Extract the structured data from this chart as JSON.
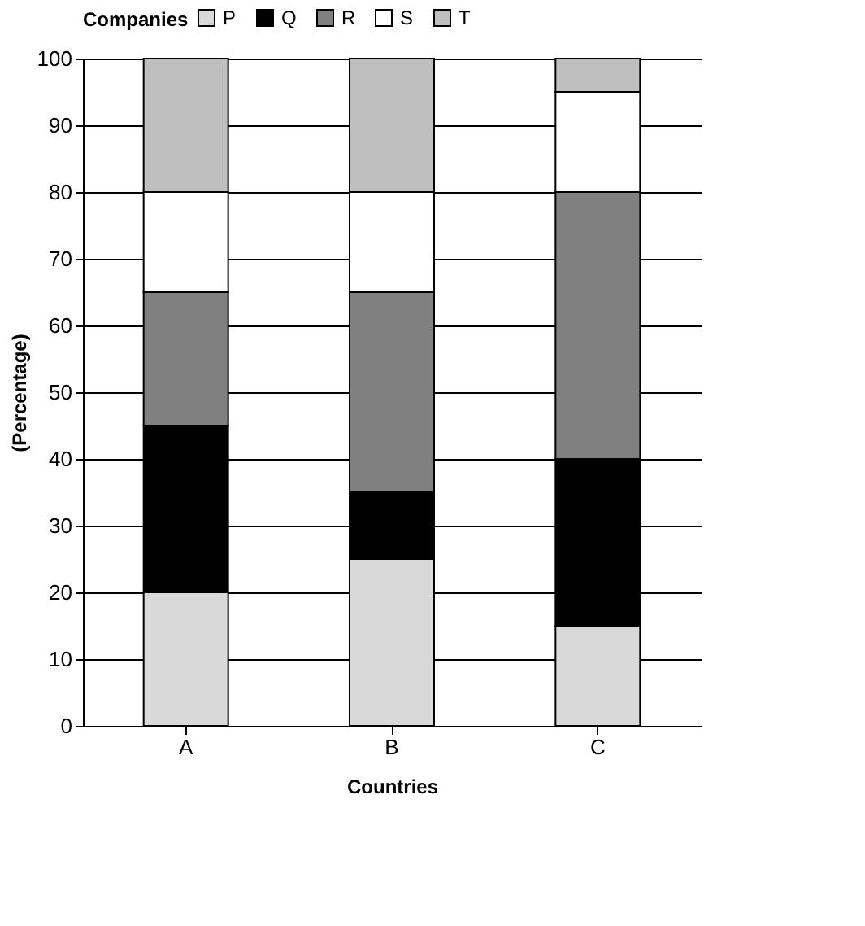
{
  "chart_data": {
    "type": "bar",
    "stacked": true,
    "xlabel": "Countries",
    "ylabel": "(Percentage)",
    "legend_title": "Companies",
    "legend": "top",
    "grid": "y",
    "categories": [
      "A",
      "B",
      "C"
    ],
    "series": [
      {
        "name": "P",
        "color": "#d9d9d9",
        "values": [
          20,
          25,
          15
        ]
      },
      {
        "name": "Q",
        "color": "#000000",
        "values": [
          25,
          10,
          25
        ]
      },
      {
        "name": "R",
        "color": "#808080",
        "values": [
          20,
          30,
          40
        ]
      },
      {
        "name": "S",
        "color": "#ffffff",
        "values": [
          15,
          15,
          15
        ]
      },
      {
        "name": "T",
        "color": "#bfbfbf",
        "values": [
          20,
          20,
          5
        ]
      }
    ],
    "ylim": [
      0,
      100
    ],
    "yticks": [
      0,
      10,
      20,
      30,
      40,
      50,
      60,
      70,
      80,
      90,
      100
    ]
  }
}
